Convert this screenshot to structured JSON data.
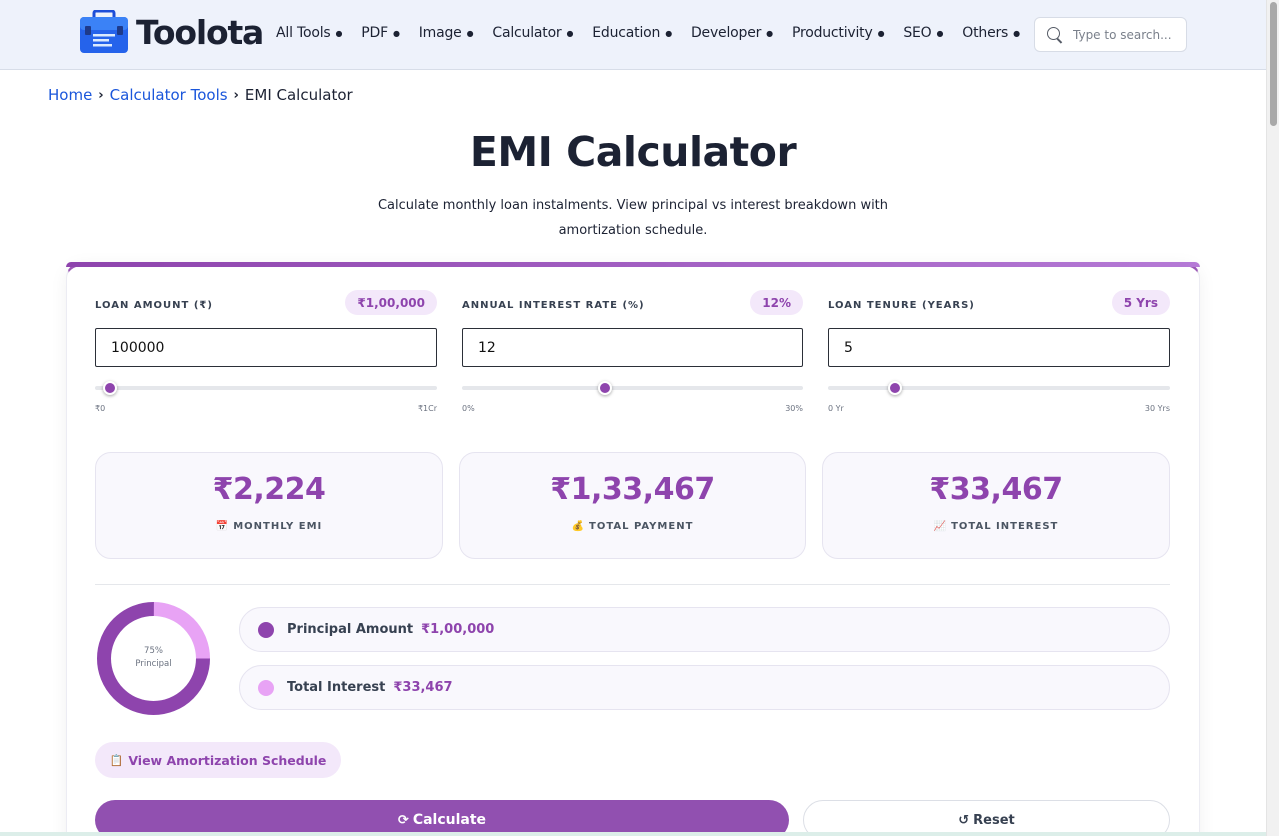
{
  "brand": {
    "name": "Toolota",
    "accent": "#8e44ad",
    "link_color": "#1a56db"
  },
  "nav": {
    "items": [
      {
        "label": "All Tools"
      },
      {
        "label": "PDF"
      },
      {
        "label": "Image"
      },
      {
        "label": "Calculator"
      },
      {
        "label": "Education"
      },
      {
        "label": "Developer"
      },
      {
        "label": "Productivity"
      },
      {
        "label": "SEO"
      },
      {
        "label": "Others"
      }
    ],
    "caret_icon": "caret-down-icon"
  },
  "search": {
    "placeholder": "Type to search...",
    "icon": "search-icon"
  },
  "breadcrumb": {
    "home": "Home",
    "category": "Calculator Tools",
    "current": "EMI Calculator"
  },
  "page": {
    "title": "EMI Calculator",
    "subtitle": "Calculate monthly loan instalments. View principal vs interest breakdown with amortization schedule."
  },
  "inputs": {
    "loan_amount": {
      "label": "LOAN AMOUNT (₹)",
      "badge": "₹1,00,000",
      "value": "100000",
      "min_label": "₹0",
      "max_label": "₹1Cr",
      "slider_fraction": 0.01
    },
    "interest_rate": {
      "label": "ANNUAL INTEREST RATE (%)",
      "badge": "12%",
      "value": "12",
      "min_label": "0%",
      "max_label": "30%",
      "slider_fraction": 0.4
    },
    "tenure": {
      "label": "LOAN TENURE (YEARS)",
      "badge": "5 Yrs",
      "value": "5",
      "min_label": "0 Yr",
      "max_label": "30 Yrs",
      "slider_fraction": 0.1667
    }
  },
  "results": {
    "monthly_emi": {
      "value": "₹2,224",
      "label": "MONTHLY EMI",
      "emoji": "📅"
    },
    "total_payment": {
      "value": "₹1,33,467",
      "label": "TOTAL PAYMENT",
      "emoji": "💰"
    },
    "total_interest": {
      "value": "₹33,467",
      "label": "TOTAL INTEREST",
      "emoji": "📈"
    }
  },
  "breakdown": {
    "donut_percent": "75%",
    "donut_caption": "Principal",
    "principal_fraction": 0.75,
    "principal": {
      "label": "Principal Amount",
      "value": "₹1,00,000",
      "color": "#8e44ad"
    },
    "interest": {
      "label": "Total Interest",
      "value": "₹33,467",
      "color": "#e8a3f5"
    }
  },
  "actions": {
    "amortization": "View Amortization Schedule",
    "amortization_icon": "📋",
    "calculate": "Calculate",
    "calculate_icon": "⟳",
    "reset": "Reset",
    "reset_icon": "↺"
  }
}
